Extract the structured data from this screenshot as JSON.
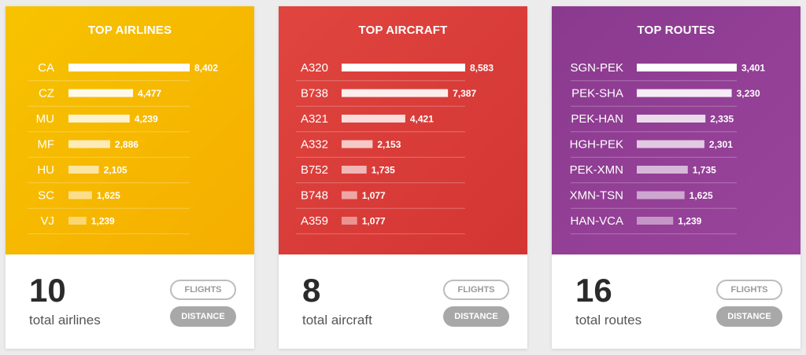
{
  "chart_data": [
    {
      "type": "bar",
      "title": "TOP AIRLINES",
      "categories": [
        "CA",
        "CZ",
        "MU",
        "MF",
        "HU",
        "SC",
        "VJ"
      ],
      "values": [
        8402,
        4477,
        4239,
        2886,
        2105,
        1625,
        1239
      ],
      "value_labels": [
        "8,402",
        "4,477",
        "4,239",
        "2,886",
        "2,105",
        "1,625",
        "1,239"
      ],
      "xlim": [
        0,
        8402
      ]
    },
    {
      "type": "bar",
      "title": "TOP AIRCRAFT",
      "categories": [
        "A320",
        "B738",
        "A321",
        "A332",
        "B752",
        "B748",
        "A359"
      ],
      "values": [
        8583,
        7387,
        4421,
        2153,
        1735,
        1077,
        1077
      ],
      "value_labels": [
        "8,583",
        "7,387",
        "4,421",
        "2,153",
        "1,735",
        "1,077",
        "1,077"
      ],
      "xlim": [
        0,
        8583
      ]
    },
    {
      "type": "bar",
      "title": "TOP ROUTES",
      "categories": [
        "SGN-PEK",
        "PEK-SHA",
        "PEK-HAN",
        "HGH-PEK",
        "PEK-XMN",
        "XMN-TSN",
        "HAN-VCA"
      ],
      "values": [
        3401,
        3230,
        2335,
        2301,
        1735,
        1625,
        1239
      ],
      "value_labels": [
        "3,401",
        "3,230",
        "2,335",
        "2,301",
        "1,735",
        "1,625",
        "1,239"
      ],
      "xlim": [
        0,
        3401
      ]
    }
  ],
  "cards": [
    {
      "title": "TOP AIRLINES",
      "stat_value": "10",
      "stat_label": "total airlines",
      "flights_label": "FLIGHTS",
      "distance_label": "DISTANCE",
      "accent": "#f5b800"
    },
    {
      "title": "TOP AIRCRAFT",
      "stat_value": "8",
      "stat_label": "total aircraft",
      "flights_label": "FLIGHTS",
      "distance_label": "DISTANCE",
      "accent": "#da3d39"
    },
    {
      "title": "TOP ROUTES",
      "stat_value": "16",
      "stat_label": "total routes",
      "flights_label": "FLIGHTS",
      "distance_label": "DISTANCE",
      "accent": "#923f95"
    }
  ]
}
